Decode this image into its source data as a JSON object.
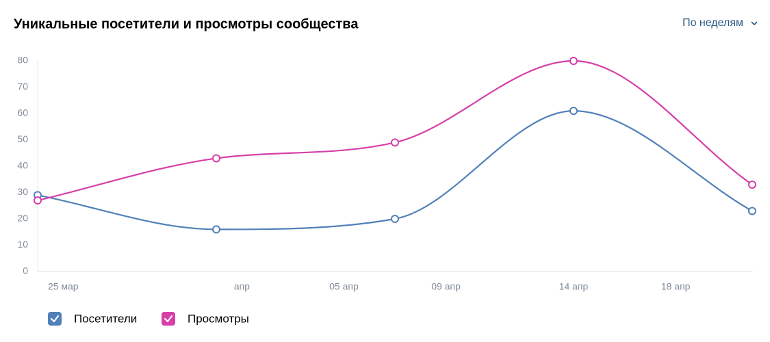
{
  "chart_data": {
    "type": "line",
    "title": "Уникальные посетители и просмотры сообщества",
    "period_selector": "По неделям",
    "x": [
      83,
      90,
      97,
      104,
      111
    ],
    "xlim": [
      83,
      111
    ],
    "xticks": [
      {
        "value": 84,
        "label": "25 мар"
      },
      {
        "value": 91,
        "label": "апр"
      },
      {
        "value": 95,
        "label": "05 апр"
      },
      {
        "value": 99,
        "label": "09 апр"
      },
      {
        "value": 104,
        "label": "14 апр"
      },
      {
        "value": 108,
        "label": "18 апр"
      }
    ],
    "ylim": [
      0,
      80
    ],
    "yticks": [
      0,
      10,
      20,
      30,
      40,
      50,
      60,
      70,
      80
    ],
    "series": [
      {
        "name": "Посетители",
        "color": "#5181b8",
        "values": [
          29,
          16,
          20,
          61,
          23
        ]
      },
      {
        "name": "Просмотры",
        "color": "#d63fa8",
        "values": [
          27,
          43,
          49,
          80,
          33
        ]
      }
    ]
  }
}
